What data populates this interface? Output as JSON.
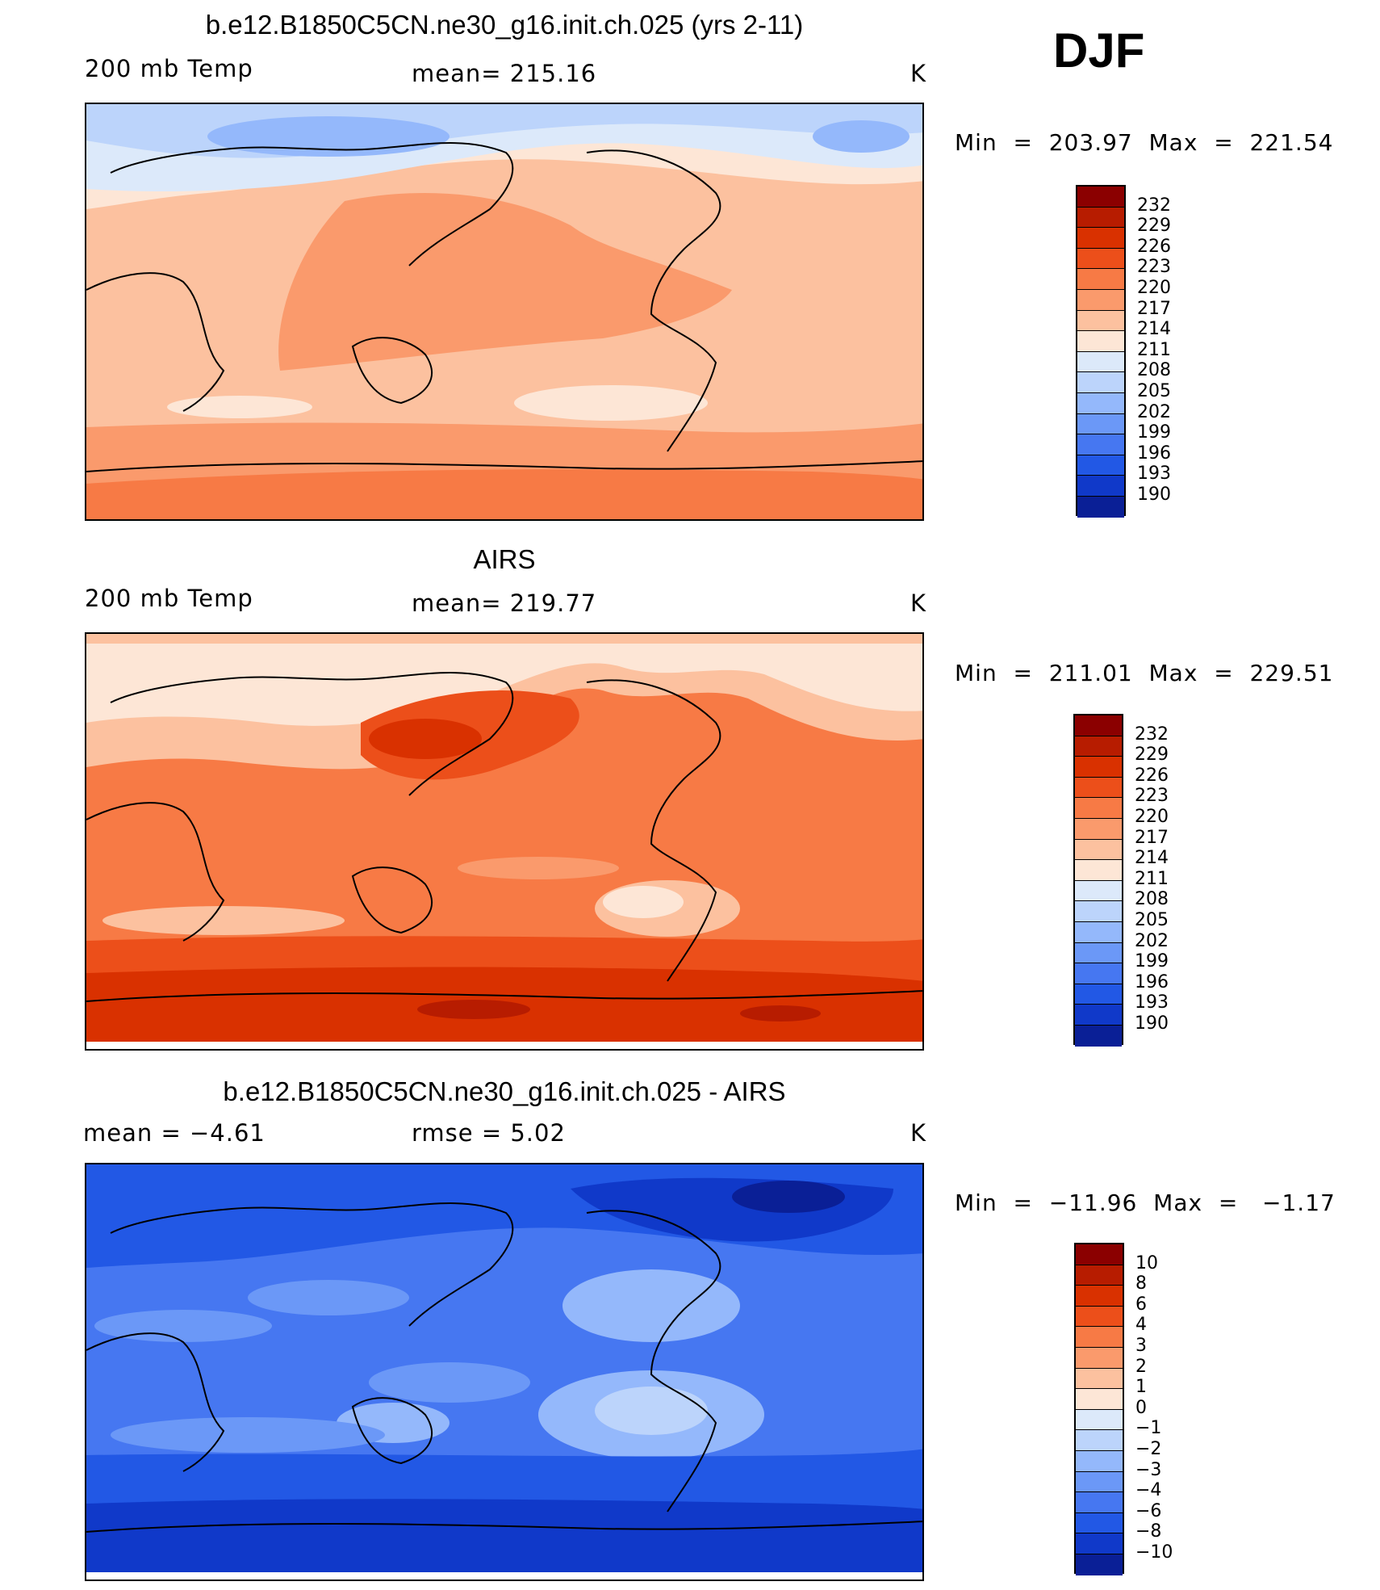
{
  "season": "DJF",
  "panels": [
    {
      "title": "b.e12.B1850C5CN.ne30_g16.init.ch.025 (yrs 2-11)",
      "left_label": "200 mb Temp",
      "center_label": "mean=  215.16",
      "units": "K",
      "minmax": "Min  =  203.97  Max  =  221.54"
    },
    {
      "title": "AIRS",
      "left_label": "200 mb Temp",
      "center_label": "mean=  219.77",
      "units": "K",
      "minmax": "Min  =  211.01  Max  =  229.51"
    },
    {
      "title": "b.e12.B1850C5CN.ne30_g16.init.ch.025 - AIRS",
      "left_label": "mean  =    −4.61",
      "center_label": "rmse  =     5.02",
      "units": "K",
      "minmax": "Min  =  −11.96  Max  =   −1.17"
    }
  ],
  "colorbars": [
    {
      "ticks": [
        "232",
        "229",
        "226",
        "223",
        "220",
        "217",
        "214",
        "211",
        "208",
        "205",
        "202",
        "199",
        "196",
        "193",
        "190"
      ],
      "colors": [
        "#8b0000",
        "#b71c00",
        "#d93100",
        "#ec4f1a",
        "#f77a45",
        "#fa9a6c",
        "#fcc19f",
        "#fde6d6",
        "#dce9fa",
        "#bcd4fb",
        "#94b8fb",
        "#6b98f7",
        "#4677f1",
        "#2258e5",
        "#1039c9",
        "#0a1f96"
      ]
    },
    {
      "ticks": [
        "232",
        "229",
        "226",
        "223",
        "220",
        "217",
        "214",
        "211",
        "208",
        "205",
        "202",
        "199",
        "196",
        "193",
        "190"
      ],
      "colors": [
        "#8b0000",
        "#b71c00",
        "#d93100",
        "#ec4f1a",
        "#f77a45",
        "#fa9a6c",
        "#fcc19f",
        "#fde6d6",
        "#dce9fa",
        "#bcd4fb",
        "#94b8fb",
        "#6b98f7",
        "#4677f1",
        "#2258e5",
        "#1039c9",
        "#0a1f96"
      ]
    },
    {
      "ticks": [
        "10",
        "8",
        "6",
        "4",
        "3",
        "2",
        "1",
        "0",
        "−1",
        "−2",
        "−3",
        "−4",
        "−6",
        "−8",
        "−10"
      ],
      "colors": [
        "#8b0000",
        "#b71c00",
        "#d93100",
        "#ec4f1a",
        "#f77a45",
        "#fa9a6c",
        "#fcc19f",
        "#fde6d6",
        "#dce9fa",
        "#bcd4fb",
        "#94b8fb",
        "#6b98f7",
        "#4677f1",
        "#2258e5",
        "#1039c9",
        "#0a1f96"
      ]
    }
  ],
  "chart_data": [
    {
      "type": "heatmap",
      "title": "b.e12.B1850C5CN.ne30_g16.init.ch.025 (yrs 2-11)",
      "variable": "200 mb Temp",
      "units": "K",
      "mean": 215.16,
      "min": 203.97,
      "max": 221.54,
      "contour_levels": [
        190,
        193,
        196,
        199,
        202,
        205,
        208,
        211,
        214,
        217,
        220,
        223,
        226,
        229,
        232
      ]
    },
    {
      "type": "heatmap",
      "title": "AIRS",
      "variable": "200 mb Temp",
      "units": "K",
      "mean": 219.77,
      "min": 211.01,
      "max": 229.51,
      "contour_levels": [
        190,
        193,
        196,
        199,
        202,
        205,
        208,
        211,
        214,
        217,
        220,
        223,
        226,
        229,
        232
      ]
    },
    {
      "type": "heatmap",
      "title": "b.e12.B1850C5CN.ne30_g16.init.ch.025 - AIRS",
      "units": "K",
      "mean": -4.61,
      "rmse": 5.02,
      "min": -11.96,
      "max": -1.17,
      "contour_levels": [
        -10,
        -8,
        -6,
        -4,
        -3,
        -2,
        -1,
        0,
        1,
        2,
        3,
        4,
        6,
        8,
        10
      ]
    }
  ]
}
